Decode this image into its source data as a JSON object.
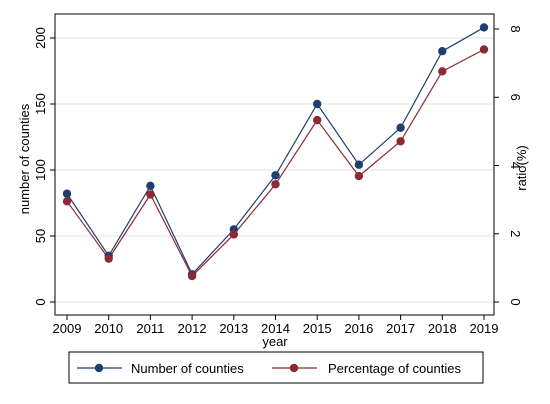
{
  "chart_data": {
    "type": "line",
    "categories": [
      "2009",
      "2010",
      "2011",
      "2012",
      "2013",
      "2014",
      "2015",
      "2016",
      "2017",
      "2018",
      "2019"
    ],
    "series": [
      {
        "name": "Number of counties",
        "axis": "left",
        "color": "#1f3f6e",
        "values": [
          82,
          35,
          88,
          21,
          55,
          96,
          150,
          104,
          132,
          190,
          208
        ]
      },
      {
        "name": "Percentage of counties",
        "axis": "right",
        "color": "#8b2a35",
        "values": [
          2.95,
          1.27,
          3.15,
          0.76,
          1.98,
          3.45,
          5.33,
          3.69,
          4.71,
          6.76,
          7.4
        ]
      }
    ],
    "xlabel": "year",
    "ylabel": "number of counties",
    "ylabel_right": "ratio(%)",
    "ylim": [
      0,
      210
    ],
    "ylim_right": [
      0,
      8
    ],
    "yticks": [
      0,
      50,
      100,
      150,
      200
    ],
    "yticks_right": [
      0,
      2,
      4,
      6,
      8
    ],
    "grid": "horizontal",
    "legend_position": "bottom"
  }
}
